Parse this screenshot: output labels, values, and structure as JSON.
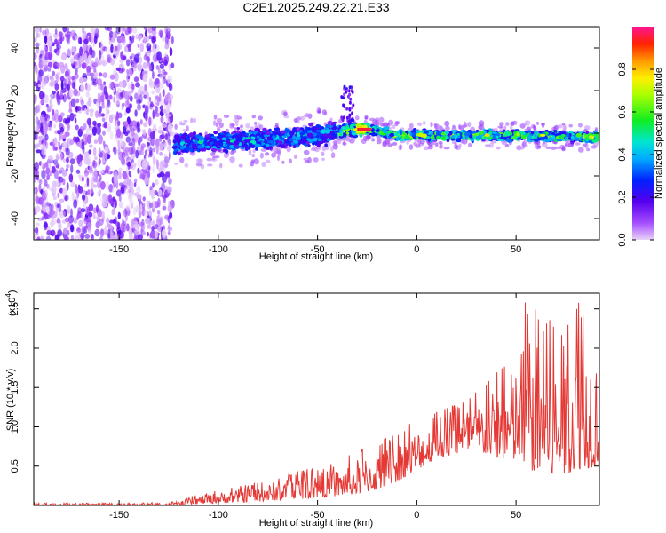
{
  "title": "C2E1.2025.249.22.21.E33",
  "chart_data": [
    {
      "type": "heatmap",
      "xlabel": "Height of straight line (km)",
      "ylabel": "Frequency (Hz)",
      "xlim": [
        -193,
        92
      ],
      "ylim": [
        -50,
        50
      ],
      "xticks": [
        -150,
        -100,
        -50,
        0,
        50
      ],
      "yticks": [
        -40,
        -20,
        0,
        20,
        40
      ],
      "colorbar": {
        "label": "Normalized spectral amplitude",
        "range": [
          0.0,
          1.0
        ],
        "ticks": [
          "0.0",
          "0.2",
          "0.4",
          "0.6",
          "0.8"
        ],
        "tick_values": [
          0.0,
          0.2,
          0.4,
          0.6,
          0.8
        ]
      },
      "ridge": {
        "description_points_x": [
          -120,
          -100,
          -80,
          -60,
          -45,
          -35,
          -30,
          -25,
          -20,
          -10,
          0,
          20,
          50,
          92
        ],
        "description_points_y": [
          -5,
          -4,
          -3,
          -2,
          0,
          1,
          2,
          2,
          1,
          -1,
          -1,
          -1,
          -1,
          -2
        ],
        "peak_amplitude_x": [
          -30,
          -25
        ],
        "peak_amplitude": 0.95
      },
      "noise_region_x": [
        -193,
        -123
      ],
      "spike_at": {
        "x": -35,
        "y_range": [
          5,
          22
        ]
      }
    },
    {
      "type": "line",
      "xlabel": "Height of straight line (km)",
      "ylabel": "SNR (10 * v/v)",
      "yscale_label": "(x10",
      "yscale_exponent": "4",
      "xlim": [
        -193,
        92
      ],
      "ylim": [
        0,
        2.7
      ],
      "xticks": [
        -150,
        -100,
        -50,
        0,
        50
      ],
      "yticks": [
        0.5,
        1.0,
        1.5,
        2.0,
        2.5
      ],
      "ytick_labels": [
        "0.5",
        "1.0",
        "1.5",
        "2.0",
        "2.5"
      ],
      "color": "#e53935",
      "envelope_x": [
        -193,
        -150,
        -120,
        -110,
        -100,
        -80,
        -60,
        -40,
        -30,
        -20,
        -10,
        0,
        10,
        20,
        30,
        40,
        50,
        55,
        60,
        70,
        80,
        92
      ],
      "envelope_min": [
        0.0,
        0.0,
        0.0,
        0.02,
        0.03,
        0.05,
        0.08,
        0.12,
        0.15,
        0.2,
        0.3,
        0.45,
        0.6,
        0.65,
        0.7,
        0.6,
        0.55,
        0.5,
        0.4,
        0.35,
        0.45,
        0.5
      ],
      "envelope_max": [
        0.03,
        0.03,
        0.05,
        0.15,
        0.2,
        0.3,
        0.45,
        0.55,
        0.7,
        0.8,
        0.95,
        1.1,
        1.2,
        1.3,
        1.45,
        1.7,
        2.1,
        2.7,
        2.5,
        2.3,
        2.7,
        2.4
      ]
    }
  ]
}
